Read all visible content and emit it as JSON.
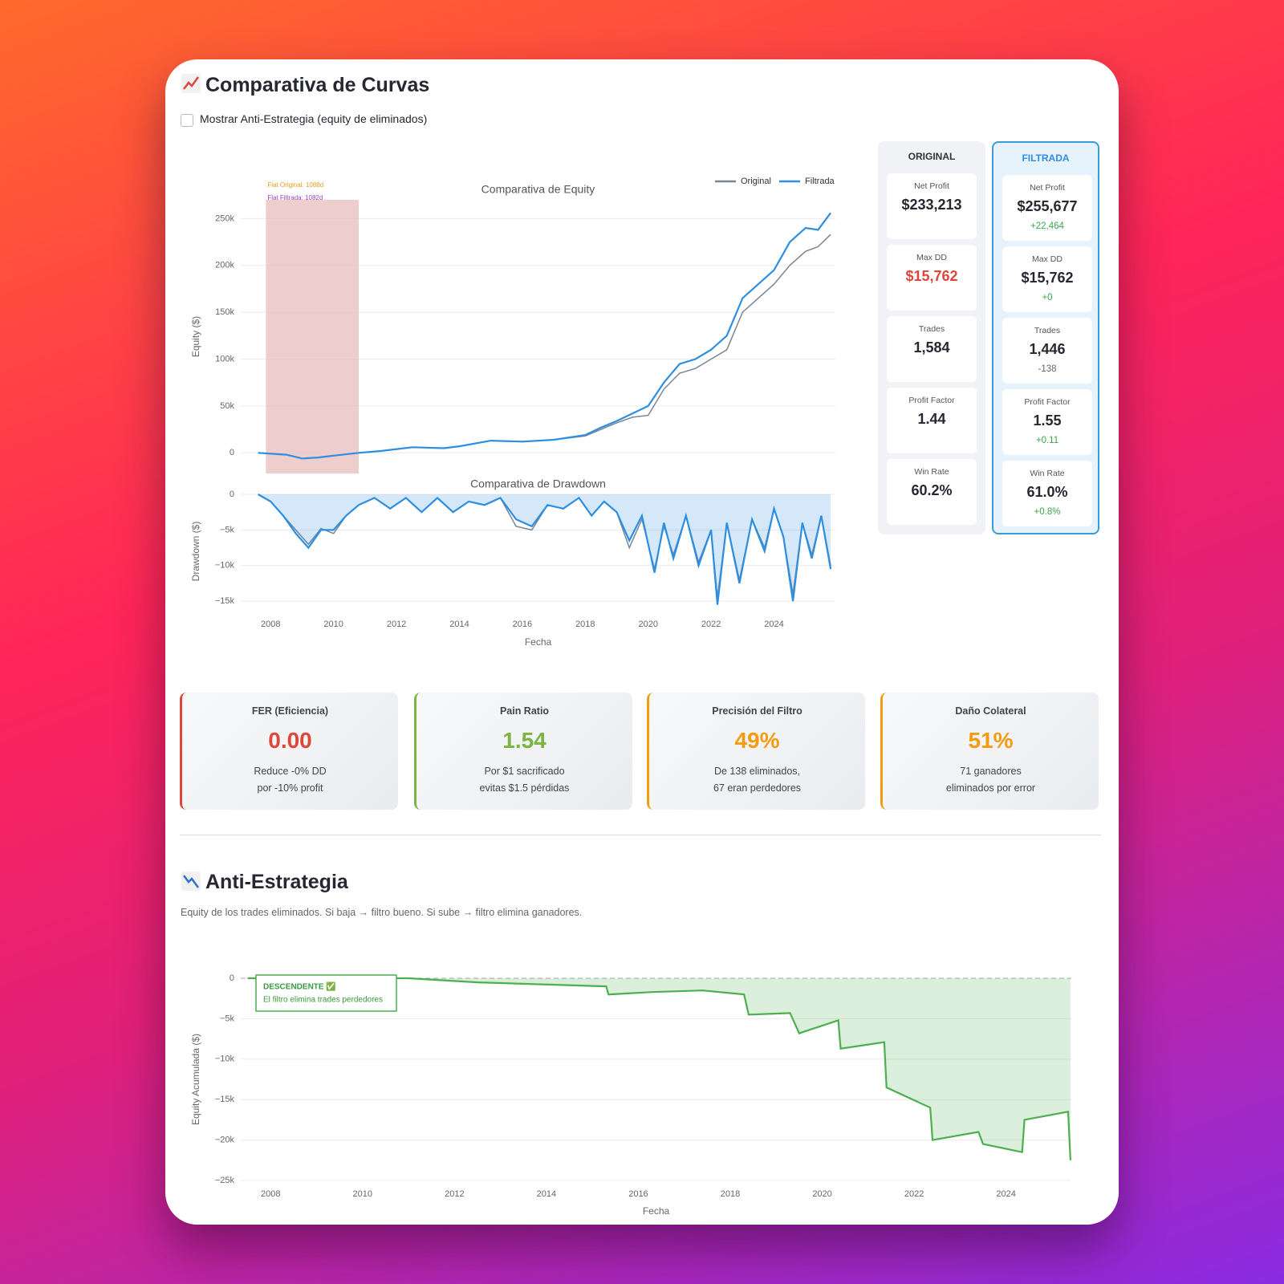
{
  "header": {
    "title": "Comparativa de Curvas",
    "checkbox": "Mostrar Anti-Estrategia (equity de eliminados)"
  },
  "chart_data": [
    {
      "type": "line",
      "title": "Comparativa de Equity",
      "ylabel": "Equity ($)",
      "annotations": [
        {
          "text": "Flat Original: 1088d",
          "color": "#e69b1e"
        },
        {
          "text": "Flat Filtrada: 1082d",
          "color": "#9b3fc0"
        }
      ],
      "highlight": {
        "x": [
          2007.85,
          2010.8
        ],
        "color": "#e8bcbc"
      },
      "legend": "top-right",
      "x": [
        2007.6,
        2008.5,
        2009.0,
        2009.5,
        2010.0,
        2010.8,
        2011.5,
        2012.5,
        2013.5,
        2014.0,
        2015.0,
        2016.0,
        2017.0,
        2018.0,
        2018.5,
        2019.0,
        2019.5,
        2020.0,
        2020.5,
        2021.0,
        2021.5,
        2022.0,
        2022.5,
        2023.0,
        2023.5,
        2024.0,
        2024.5,
        2025.0,
        2025.4,
        2025.8
      ],
      "series": [
        {
          "name": "Original",
          "color": "#7a8691",
          "values": [
            0,
            -2000,
            -6000,
            -5000,
            -3000,
            0,
            2000,
            6000,
            5000,
            7000,
            13000,
            12000,
            14000,
            18000,
            25000,
            32000,
            38000,
            40000,
            68000,
            85000,
            90000,
            100000,
            110000,
            150000,
            165000,
            180000,
            200000,
            215000,
            220000,
            233000
          ]
        },
        {
          "name": "Filtrada",
          "color": "#2e8ee0",
          "values": [
            0,
            -2000,
            -6000,
            -5000,
            -3000,
            0,
            2000,
            6000,
            5000,
            7000,
            13000,
            12000,
            14000,
            19000,
            27000,
            34000,
            42000,
            50000,
            75000,
            95000,
            100000,
            110000,
            125000,
            165000,
            180000,
            195000,
            225000,
            240000,
            238000,
            256000
          ]
        }
      ],
      "xlim": [
        2007.05,
        2025.95
      ],
      "ylim": [
        -22000,
        270000
      ],
      "yticks": [
        0,
        {
          "value": 50000,
          "label": "50k"
        },
        {
          "value": 100000,
          "label": "100k"
        },
        {
          "value": 150000,
          "label": "150k"
        },
        {
          "value": 200000,
          "label": "200k"
        },
        {
          "value": 250000,
          "label": "250k"
        }
      ],
      "grid": true
    },
    {
      "type": "area",
      "title": "Comparativa de Drawdown",
      "ylabel": "Drawdown ($)",
      "xlabel": "Fecha",
      "x": [
        2007.6,
        2008.0,
        2008.4,
        2008.8,
        2009.2,
        2009.6,
        2010.0,
        2010.4,
        2010.8,
        2011.3,
        2011.8,
        2012.3,
        2012.8,
        2013.3,
        2013.8,
        2014.3,
        2014.8,
        2015.3,
        2015.8,
        2016.3,
        2016.8,
        2017.3,
        2017.8,
        2018.2,
        2018.6,
        2019.0,
        2019.4,
        2019.8,
        2020.2,
        2020.5,
        2020.8,
        2021.2,
        2021.6,
        2022.0,
        2022.2,
        2022.5,
        2022.9,
        2023.3,
        2023.7,
        2024.0,
        2024.3,
        2024.6,
        2024.9,
        2025.2,
        2025.5,
        2025.8
      ],
      "series": [
        {
          "name": "Original",
          "color": "#7a8691",
          "values": [
            0,
            -1000,
            -3000,
            -5000,
            -7000,
            -4800,
            -5500,
            -3000,
            -1500,
            -500,
            -2000,
            -500,
            -2500,
            -500,
            -2500,
            -1000,
            -1500,
            -500,
            -4500,
            -5000,
            -1500,
            -2000,
            -500,
            -3000,
            -1000,
            -2500,
            -7500,
            -3500,
            -10500,
            -4500,
            -8500,
            -3000,
            -9500,
            -5000,
            -14500,
            -4000,
            -12000,
            -3500,
            -7500,
            -2000,
            -6000,
            -14000,
            -4000,
            -8500,
            -3000,
            -10000
          ]
        },
        {
          "name": "Filtrada",
          "color": "#2e8ee0",
          "values": [
            0,
            -1000,
            -3000,
            -5500,
            -7500,
            -5000,
            -5000,
            -3000,
            -1500,
            -500,
            -2000,
            -500,
            -2500,
            -500,
            -2500,
            -1000,
            -1500,
            -500,
            -3500,
            -4500,
            -1500,
            -2000,
            -500,
            -3000,
            -1000,
            -2500,
            -6500,
            -3000,
            -11000,
            -4000,
            -9000,
            -3000,
            -10000,
            -5000,
            -15500,
            -4000,
            -12500,
            -3500,
            -8000,
            -2000,
            -6000,
            -15000,
            -4000,
            -9000,
            -3000,
            -10500
          ]
        }
      ],
      "xlim": [
        2007.05,
        2025.95
      ],
      "ylim": [
        -16000,
        0
      ],
      "xticks": [
        2008,
        2010,
        2012,
        2014,
        2016,
        2018,
        2020,
        2022,
        2024
      ],
      "yticks": [
        0,
        {
          "value": -5000,
          "label": "−5k"
        },
        {
          "value": -10000,
          "label": "−10k"
        },
        {
          "value": -15000,
          "label": "−15k"
        }
      ],
      "grid": true
    },
    {
      "type": "area",
      "ylabel": "Equity Acumulada ($)",
      "xlabel": "Fecha",
      "annotation": {
        "title": "DESCENDENTE ✅",
        "text": "El filtro elimina trades perdedores"
      },
      "x": [
        2007.5,
        2008.0,
        2011.0,
        2012.5,
        2015.3,
        2015.35,
        2016.3,
        2017.4,
        2018.3,
        2018.4,
        2019.3,
        2019.5,
        2020.35,
        2020.4,
        2021.35,
        2021.4,
        2022.35,
        2022.4,
        2023.4,
        2023.5,
        2024.35,
        2024.4,
        2025.35,
        2025.4
      ],
      "series": [
        {
          "name": "Anti-Estrategia",
          "color": "#4caf50",
          "values": [
            0,
            0,
            0,
            -500,
            -1000,
            -2000,
            -1700,
            -1500,
            -2000,
            -4500,
            -4300,
            -6800,
            -5200,
            -8700,
            -7900,
            -13500,
            -16000,
            -20000,
            -19000,
            -20500,
            -21500,
            -17500,
            -16500,
            -22500
          ]
        }
      ],
      "xlim": [
        2007.35,
        2025.42
      ],
      "ylim": [
        -25500,
        500
      ],
      "xticks": [
        2008,
        2010,
        2012,
        2014,
        2016,
        2018,
        2020,
        2022,
        2024
      ],
      "yticks": [
        0,
        {
          "value": -5000,
          "label": "−5k"
        },
        {
          "value": -10000,
          "label": "−10k"
        },
        {
          "value": -15000,
          "label": "−15k"
        },
        {
          "value": -20000,
          "label": "−20k"
        },
        {
          "value": -25000,
          "label": "−25k"
        }
      ],
      "grid": true
    }
  ],
  "metrics": {
    "original": {
      "title": "ORIGINAL",
      "items": [
        {
          "label": "Net Profit",
          "value": "$233,213"
        },
        {
          "label": "Max DD",
          "value": "$15,762",
          "color": "#e0453a"
        },
        {
          "label": "Trades",
          "value": "1,584"
        },
        {
          "label": "Profit Factor",
          "value": "1.44"
        },
        {
          "label": "Win Rate",
          "value": "60.2%"
        }
      ]
    },
    "filtrada": {
      "title": "FILTRADA",
      "items": [
        {
          "label": "Net Profit",
          "value": "$255,677",
          "delta": "+22,464",
          "delta_color": "#3aa64a"
        },
        {
          "label": "Max DD",
          "value": "$15,762",
          "delta": "+0",
          "delta_color": "#3aa64a"
        },
        {
          "label": "Trades",
          "value": "1,446",
          "delta": "-138",
          "delta_color": "#666666"
        },
        {
          "label": "Profit Factor",
          "value": "1.55",
          "delta": "+0.11",
          "delta_color": "#3aa64a"
        },
        {
          "label": "Win Rate",
          "value": "61.0%",
          "delta": "+0.8%",
          "delta_color": "#3aa64a"
        }
      ]
    }
  },
  "kpis": [
    {
      "title": "FER (Eficiencia)",
      "value": "0.00",
      "lines": [
        "Reduce -0% DD",
        "por -10% profit"
      ],
      "color": "#e0453a"
    },
    {
      "title": "Pain Ratio",
      "value": "1.54",
      "lines": [
        "Por $1 sacrificado",
        "evitas $1.5 pérdidas"
      ],
      "color": "#7cb342"
    },
    {
      "title": "Precisión del Filtro",
      "value": "49%",
      "lines": [
        "De 138 eliminados,",
        "67 eran perdedores"
      ],
      "color": "#f39c12"
    },
    {
      "title": "Daño Colateral",
      "value": "51%",
      "lines": [
        "71 ganadores",
        "eliminados por error"
      ],
      "color": "#f39c12"
    }
  ],
  "section": {
    "title": "Anti-Estrategia",
    "text": "Equity de los trades eliminados. Si baja → filtro bueno. Si sube → filtro elimina ganadores."
  }
}
